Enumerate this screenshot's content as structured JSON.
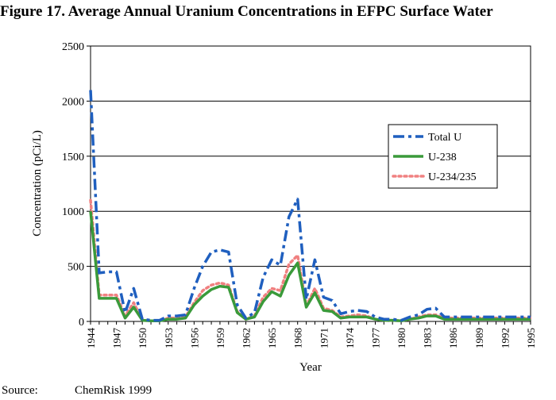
{
  "figure": {
    "title": "Figure 17. Average Annual Uranium Concentrations in EFPC Surface Water",
    "source_label": "Source:",
    "source_value": "ChemRisk 1999"
  },
  "chart_data": {
    "type": "line",
    "xlabel": "Year",
    "ylabel": "Concentration (pCi/L)",
    "ylim": [
      0,
      2500
    ],
    "yticks": [
      0,
      500,
      1000,
      1500,
      2000,
      2500
    ],
    "xlim": [
      1944,
      1995
    ],
    "xticks": [
      1944,
      1947,
      1950,
      1953,
      1956,
      1959,
      1962,
      1965,
      1968,
      1971,
      1974,
      1977,
      1980,
      1983,
      1986,
      1989,
      1992,
      1995
    ],
    "grid": "horizontal",
    "legend_position": "right",
    "series": [
      {
        "name": "Total U",
        "color": "#1f5fbf",
        "style": "dash-dot",
        "x": [
          1944,
          1945,
          1946,
          1947,
          1948,
          1949,
          1950,
          1951,
          1952,
          1953,
          1954,
          1955,
          1956,
          1957,
          1958,
          1959,
          1960,
          1961,
          1962,
          1963,
          1964,
          1965,
          1966,
          1967,
          1968,
          1969,
          1970,
          1971,
          1972,
          1973,
          1974,
          1975,
          1976,
          1977,
          1978,
          1979,
          1980,
          1981,
          1982,
          1983,
          1984,
          1985,
          1986,
          1987,
          1988,
          1989,
          1990,
          1991,
          1992,
          1993,
          1994,
          1995
        ],
        "values": [
          2100,
          440,
          450,
          450,
          80,
          300,
          20,
          10,
          10,
          50,
          50,
          60,
          300,
          500,
          630,
          650,
          630,
          150,
          30,
          80,
          400,
          560,
          510,
          950,
          1110,
          200,
          560,
          220,
          190,
          70,
          90,
          100,
          90,
          40,
          20,
          20,
          10,
          40,
          60,
          110,
          120,
          40,
          40,
          40,
          40,
          40,
          40,
          40,
          40,
          40,
          40,
          40
        ]
      },
      {
        "name": "U-238",
        "color": "#3a9a3a",
        "style": "solid",
        "x": [
          1944,
          1945,
          1946,
          1947,
          1948,
          1949,
          1950,
          1951,
          1952,
          1953,
          1954,
          1955,
          1956,
          1957,
          1958,
          1959,
          1960,
          1961,
          1962,
          1963,
          1964,
          1965,
          1966,
          1967,
          1968,
          1969,
          1970,
          1971,
          1972,
          1973,
          1974,
          1975,
          1976,
          1977,
          1978,
          1979,
          1980,
          1981,
          1982,
          1983,
          1984,
          1985,
          1986,
          1987,
          1988,
          1989,
          1990,
          1991,
          1992,
          1993,
          1994,
          1995
        ],
        "values": [
          1000,
          210,
          210,
          210,
          30,
          130,
          10,
          5,
          5,
          20,
          20,
          30,
          150,
          230,
          290,
          320,
          310,
          80,
          20,
          40,
          180,
          270,
          230,
          420,
          530,
          130,
          260,
          100,
          90,
          30,
          40,
          40,
          40,
          20,
          10,
          10,
          5,
          20,
          30,
          50,
          50,
          20,
          20,
          20,
          20,
          20,
          20,
          20,
          20,
          20,
          20,
          20
        ]
      },
      {
        "name": "U-234/235",
        "color": "#f08080",
        "style": "dotted",
        "x": [
          1944,
          1945,
          1946,
          1947,
          1948,
          1949,
          1950,
          1951,
          1952,
          1953,
          1954,
          1955,
          1956,
          1957,
          1958,
          1959,
          1960,
          1961,
          1962,
          1963,
          1964,
          1965,
          1966,
          1967,
          1968,
          1969,
          1970,
          1971,
          1972,
          1973,
          1974,
          1975,
          1976,
          1977,
          1978,
          1979,
          1980,
          1981,
          1982,
          1983,
          1984,
          1985,
          1986,
          1987,
          1988,
          1989,
          1990,
          1991,
          1992,
          1993,
          1994,
          1995
        ],
        "values": [
          1100,
          240,
          240,
          240,
          50,
          170,
          10,
          5,
          5,
          30,
          30,
          40,
          170,
          280,
          330,
          350,
          330,
          90,
          20,
          50,
          220,
          300,
          280,
          520,
          600,
          140,
          300,
          120,
          100,
          40,
          50,
          60,
          50,
          20,
          10,
          10,
          5,
          20,
          40,
          60,
          60,
          30,
          30,
          30,
          30,
          30,
          30,
          30,
          30,
          30,
          30,
          30
        ]
      }
    ]
  }
}
